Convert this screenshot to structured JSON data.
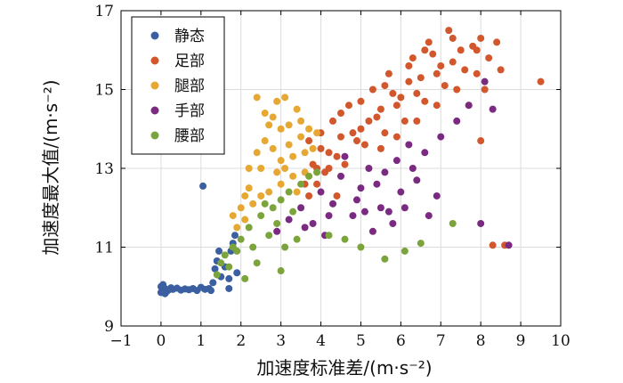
{
  "chart_data": {
    "type": "scatter",
    "xlabel": "加速度标准差/(m·s⁻²)",
    "ylabel": "加速度最大值/(m·s⁻²)",
    "xlim": [
      -1,
      10
    ],
    "ylim": [
      9,
      17
    ],
    "xticks": [
      "−1",
      "0",
      "1",
      "2",
      "3",
      "4",
      "5",
      "6",
      "7",
      "8",
      "9",
      "10"
    ],
    "yticks": [
      "9",
      "11",
      "13",
      "15",
      "17"
    ],
    "grid": true,
    "legend_position": "top-left",
    "series": [
      {
        "name": "静态",
        "color": "#3b5fa0",
        "points": [
          [
            0.0,
            9.85
          ],
          [
            0.05,
            9.9
          ],
          [
            0.1,
            9.95
          ],
          [
            0.0,
            10.0
          ],
          [
            0.15,
            9.88
          ],
          [
            0.2,
            9.92
          ],
          [
            0.1,
            9.82
          ],
          [
            0.05,
            10.05
          ],
          [
            0.25,
            9.97
          ],
          [
            0.3,
            9.93
          ],
          [
            0.4,
            9.96
          ],
          [
            0.5,
            9.91
          ],
          [
            0.6,
            9.94
          ],
          [
            0.7,
            9.92
          ],
          [
            0.8,
            9.95
          ],
          [
            0.9,
            9.9
          ],
          [
            1.0,
            9.98
          ],
          [
            1.1,
            9.93
          ],
          [
            1.2,
            9.95
          ],
          [
            1.05,
            12.55
          ],
          [
            1.25,
            9.9
          ],
          [
            1.3,
            10.1
          ],
          [
            1.35,
            10.45
          ],
          [
            1.4,
            10.65
          ],
          [
            1.45,
            10.9
          ],
          [
            1.5,
            10.25
          ],
          [
            1.6,
            10.5
          ],
          [
            1.7,
            10.2
          ],
          [
            1.75,
            10.9
          ],
          [
            1.8,
            11.1
          ],
          [
            1.85,
            11.3
          ],
          [
            1.9,
            10.35
          ],
          [
            1.7,
            9.95
          ],
          [
            1.8,
            11.0
          ]
        ]
      },
      {
        "name": "足部",
        "color": "#d2572c",
        "points": [
          [
            7.0,
            15.6
          ],
          [
            6.5,
            15.3
          ],
          [
            6.0,
            14.8
          ],
          [
            5.5,
            14.5
          ],
          [
            5.0,
            14.0
          ],
          [
            4.5,
            13.8
          ],
          [
            4.0,
            13.5
          ],
          [
            7.5,
            16.0
          ],
          [
            8.0,
            16.3
          ],
          [
            7.8,
            16.1
          ],
          [
            6.8,
            15.9
          ],
          [
            6.2,
            15.2
          ],
          [
            5.8,
            14.9
          ],
          [
            5.2,
            14.2
          ],
          [
            4.8,
            13.9
          ],
          [
            4.2,
            13.4
          ],
          [
            3.8,
            13.1
          ],
          [
            3.6,
            12.6
          ],
          [
            7.3,
            15.7
          ],
          [
            6.9,
            15.4
          ],
          [
            6.4,
            14.9
          ],
          [
            5.9,
            14.6
          ],
          [
            5.4,
            14.3
          ],
          [
            4.9,
            13.7
          ],
          [
            4.4,
            13.3
          ],
          [
            3.9,
            13.0
          ],
          [
            8.2,
            15.8
          ],
          [
            8.4,
            16.2
          ],
          [
            7.6,
            15.5
          ],
          [
            7.1,
            15.1
          ],
          [
            6.6,
            14.7
          ],
          [
            6.1,
            14.2
          ],
          [
            5.6,
            13.9
          ],
          [
            5.1,
            13.6
          ],
          [
            4.6,
            13.1
          ],
          [
            4.1,
            12.9
          ],
          [
            7.2,
            16.5
          ],
          [
            6.7,
            16.2
          ],
          [
            6.3,
            15.8
          ],
          [
            5.7,
            15.4
          ],
          [
            5.3,
            15.0
          ],
          [
            4.7,
            14.6
          ],
          [
            4.3,
            14.2
          ],
          [
            3.7,
            13.7
          ],
          [
            7.9,
            15.4
          ],
          [
            7.4,
            15.0
          ],
          [
            6.9,
            14.6
          ],
          [
            6.4,
            14.2
          ],
          [
            5.9,
            13.8
          ],
          [
            5.5,
            13.5
          ],
          [
            8.5,
            15.5
          ],
          [
            8.1,
            15.0
          ],
          [
            7.7,
            14.6
          ],
          [
            9.5,
            15.2
          ],
          [
            8.6,
            11.05
          ],
          [
            8.3,
            11.05
          ],
          [
            8.0,
            13.7
          ],
          [
            4.4,
            12.3
          ],
          [
            3.7,
            12.3
          ],
          [
            6.6,
            16.0
          ],
          [
            7.3,
            16.3
          ],
          [
            7.9,
            16.0
          ],
          [
            6.2,
            15.6
          ],
          [
            5.6,
            15.1
          ],
          [
            5.0,
            14.7
          ],
          [
            4.5,
            14.4
          ],
          [
            4.0,
            13.9
          ],
          [
            3.9,
            12.6
          ],
          [
            4.2,
            13.0
          ]
        ]
      },
      {
        "name": "腿部",
        "color": "#e6a832",
        "points": [
          [
            3.0,
            13.2
          ],
          [
            2.5,
            13.0
          ],
          [
            2.8,
            13.5
          ],
          [
            3.2,
            13.6
          ],
          [
            2.2,
            12.5
          ],
          [
            2.0,
            12.0
          ],
          [
            1.8,
            11.8
          ],
          [
            1.9,
            11.5
          ],
          [
            2.6,
            14.4
          ],
          [
            2.4,
            14.8
          ],
          [
            2.9,
            14.7
          ],
          [
            3.1,
            14.8
          ],
          [
            3.4,
            14.5
          ],
          [
            3.5,
            14.2
          ],
          [
            3.7,
            14.0
          ],
          [
            3.6,
            13.4
          ],
          [
            3.3,
            12.8
          ],
          [
            2.7,
            12.4
          ],
          [
            2.3,
            12.1
          ],
          [
            2.1,
            11.7
          ],
          [
            3.0,
            14.0
          ],
          [
            2.6,
            13.7
          ],
          [
            2.9,
            12.9
          ],
          [
            3.3,
            13.3
          ],
          [
            3.5,
            13.8
          ],
          [
            3.8,
            13.5
          ],
          [
            3.4,
            12.4
          ],
          [
            2.5,
            12.3
          ],
          [
            2.2,
            13.0
          ],
          [
            2.8,
            14.3
          ],
          [
            3.2,
            14.1
          ],
          [
            2.4,
            13.4
          ],
          [
            3.6,
            12.9
          ],
          [
            3.0,
            12.6
          ],
          [
            2.1,
            12.3
          ],
          [
            3.9,
            13.9
          ],
          [
            2.7,
            14.1
          ],
          [
            3.1,
            13.0
          ]
        ]
      },
      {
        "name": "手部",
        "color": "#7a2a80",
        "points": [
          [
            5.0,
            12.5
          ],
          [
            5.5,
            12.0
          ],
          [
            4.5,
            12.8
          ],
          [
            6.0,
            12.4
          ],
          [
            5.2,
            13.0
          ],
          [
            4.8,
            11.8
          ],
          [
            5.8,
            11.6
          ],
          [
            6.3,
            13.0
          ],
          [
            6.6,
            13.4
          ],
          [
            7.0,
            13.8
          ],
          [
            7.4,
            14.2
          ],
          [
            7.7,
            14.6
          ],
          [
            8.1,
            15.2
          ],
          [
            8.3,
            14.5
          ],
          [
            8.7,
            11.05
          ],
          [
            8.0,
            11.6
          ],
          [
            6.9,
            12.3
          ],
          [
            6.7,
            11.8
          ],
          [
            4.2,
            11.8
          ],
          [
            3.8,
            11.6
          ],
          [
            3.5,
            12.0
          ],
          [
            3.2,
            11.7
          ],
          [
            2.9,
            11.4
          ],
          [
            4.0,
            12.4
          ],
          [
            5.6,
            12.9
          ],
          [
            5.3,
            11.4
          ],
          [
            4.9,
            12.2
          ],
          [
            6.1,
            12.0
          ],
          [
            5.9,
            13.2
          ],
          [
            4.6,
            13.3
          ],
          [
            5.1,
            11.9
          ],
          [
            5.4,
            12.6
          ],
          [
            6.4,
            12.7
          ],
          [
            4.3,
            12.1
          ],
          [
            5.7,
            11.9
          ],
          [
            6.2,
            13.6
          ],
          [
            4.1,
            11.3
          ],
          [
            3.6,
            11.5
          ]
        ]
      },
      {
        "name": "腰部",
        "color": "#7ba43c",
        "points": [
          [
            2.5,
            11.8
          ],
          [
            2.8,
            12.0
          ],
          [
            3.0,
            12.2
          ],
          [
            3.2,
            12.4
          ],
          [
            3.5,
            12.6
          ],
          [
            3.7,
            12.8
          ],
          [
            2.2,
            11.5
          ],
          [
            2.0,
            11.2
          ],
          [
            1.8,
            11.0
          ],
          [
            1.6,
            10.8
          ],
          [
            1.5,
            10.6
          ],
          [
            1.4,
            10.3
          ],
          [
            2.1,
            10.2
          ],
          [
            2.4,
            10.6
          ],
          [
            3.0,
            10.4
          ],
          [
            3.1,
            11.0
          ],
          [
            3.4,
            11.2
          ],
          [
            4.2,
            11.3
          ],
          [
            4.6,
            11.2
          ],
          [
            5.0,
            11.0
          ],
          [
            6.5,
            11.1
          ],
          [
            7.3,
            11.6
          ],
          [
            6.1,
            10.9
          ],
          [
            5.6,
            10.7
          ],
          [
            3.9,
            12.9
          ],
          [
            2.7,
            11.3
          ],
          [
            2.3,
            11.0
          ],
          [
            2.9,
            11.6
          ],
          [
            3.3,
            11.9
          ],
          [
            1.9,
            10.9
          ],
          [
            1.7,
            10.5
          ],
          [
            2.6,
            12.1
          ]
        ]
      }
    ]
  }
}
